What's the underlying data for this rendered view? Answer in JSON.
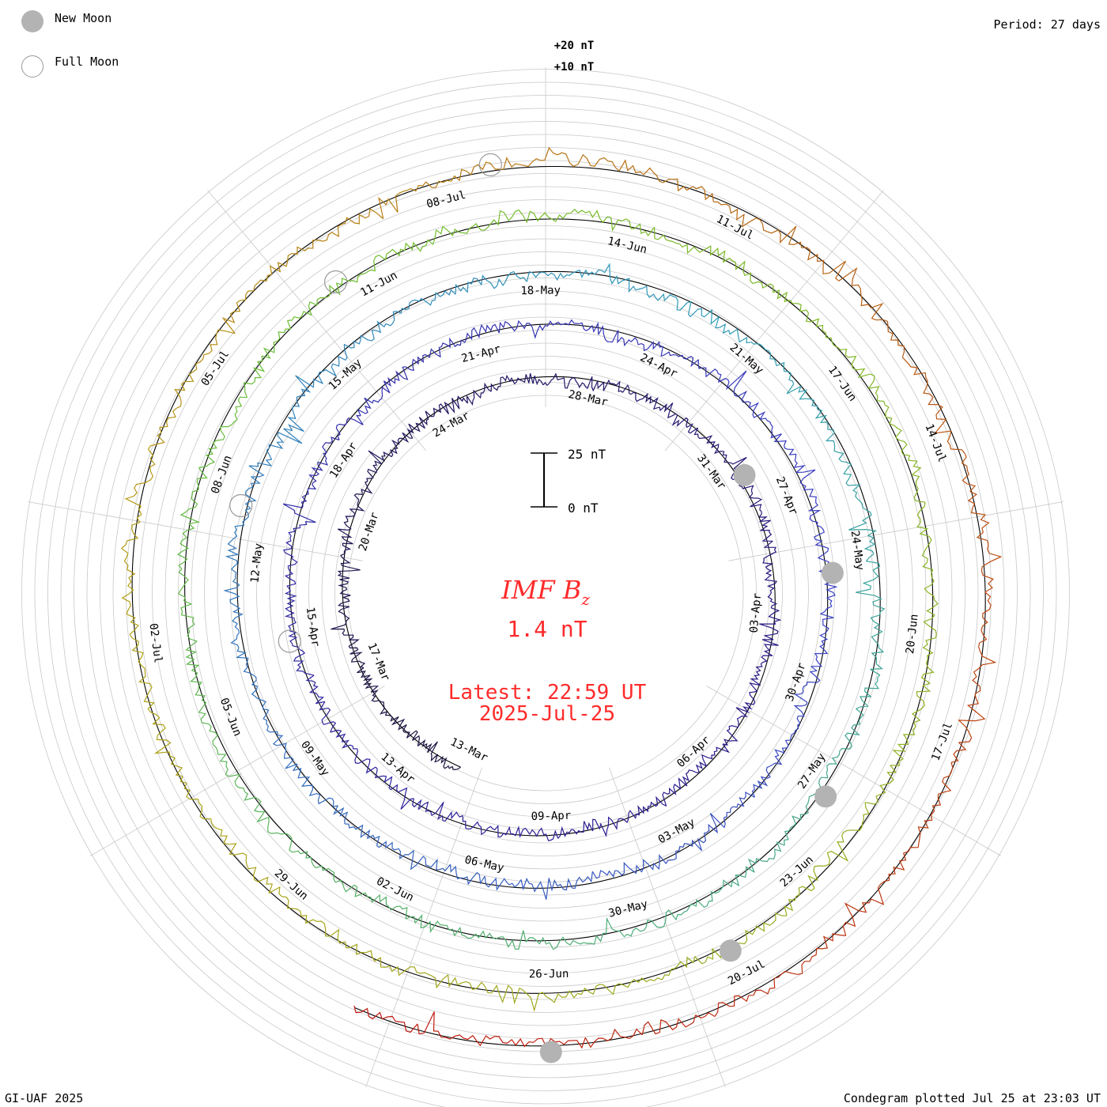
{
  "legend": {
    "new_moon_label": "New Moon",
    "full_moon_label": "Full Moon",
    "new_moon_color": "#b3b3b3",
    "full_moon_color": "#9a9a9a"
  },
  "header": {
    "period": "Period: 27 days"
  },
  "footer": {
    "credit": "GI-UAF 2025",
    "plotted": "Condegram plotted Jul 25 at 23:03 UT"
  },
  "center": {
    "parameter": "IMF B",
    "parameter_sub": "z",
    "current_value": "1.4 nT",
    "latest": "Latest: 22:59 UT",
    "latest_date": "2025-Jul-25",
    "accent_color": "#ff2b2b"
  },
  "chart_data": {
    "type": "line",
    "subtype": "condegram-spiral",
    "period_days": 27,
    "scale_labels": [
      "+20 nT",
      "+10 nT"
    ],
    "scale_bar": {
      "top": "25 nT",
      "bottom": "0 nT"
    },
    "start_date": "2025-03-13",
    "end_date": "2025-07-25",
    "series_colors": [
      "#1a1440",
      "#2b1c8f",
      "#3a3fc2",
      "#2e9bb8",
      "#6fbf2e",
      "#b3a016",
      "#c0140f"
    ],
    "date_labels": [
      "13-Mar",
      "17-Mar",
      "20-Mar",
      "24-Mar",
      "28-Mar",
      "31-Mar",
      "03-Apr",
      "06-Apr",
      "09-Apr",
      "13-Apr",
      "15-Apr",
      "18-Apr",
      "21-Apr",
      "24-Apr",
      "27-Apr",
      "30-Apr",
      "03-May",
      "06-May",
      "09-May",
      "12-May",
      "15-May",
      "18-May",
      "21-May",
      "24-May",
      "27-May",
      "30-May",
      "02-Jun",
      "05-Jun",
      "08-Jun",
      "11-Jun",
      "14-Jun",
      "17-Jun",
      "20-Jun",
      "23-Jun",
      "26-Jun",
      "29-Jun",
      "02-Jul",
      "05-Jul",
      "08-Jul",
      "11-Jul",
      "14-Jul",
      "17-Jul",
      "20-Jul"
    ],
    "new_moon_dates": [
      "2025-03-29",
      "2025-04-27",
      "2025-05-27",
      "2025-06-25",
      "2025-07-24"
    ],
    "full_moon_dates": [
      "2025-04-13",
      "2025-05-12",
      "2025-06-11",
      "2025-07-10"
    ],
    "latest_value_nT": 1.4
  }
}
